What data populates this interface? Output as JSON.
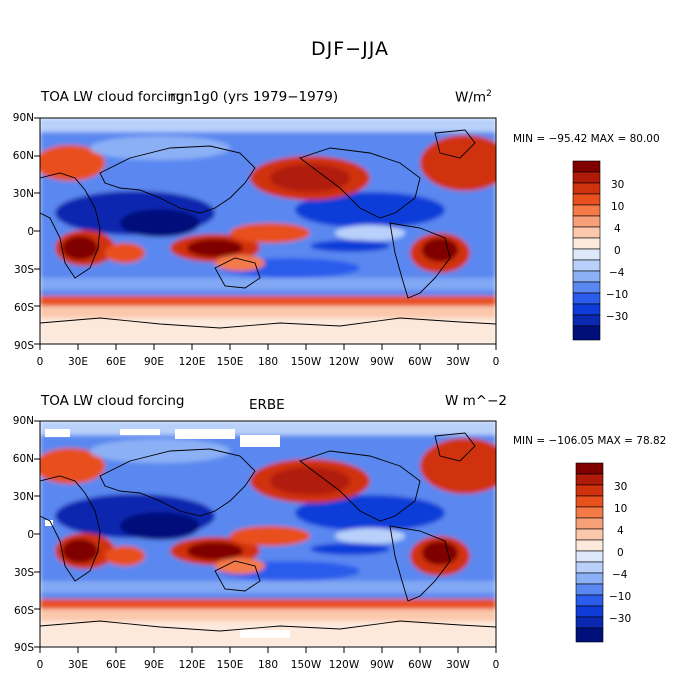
{
  "figure": {
    "main_title": "DJF−JJA"
  },
  "panels": [
    {
      "left_title": "TOA LW cloud forcing",
      "center_title": "run1g0 (yrs 1979−1979)",
      "units_base": "W/m",
      "units_exp": "2",
      "stats": "MIN = −95.42  MAX =  80.00",
      "colorbar_labels": [
        "30",
        "10",
        "4",
        "0",
        "−4",
        "−10",
        "−30"
      ]
    },
    {
      "left_title": "TOA LW cloud forcing",
      "center_title": "ERBE",
      "units": "W m^−2",
      "stats": "MIN = −106.05  MAX =  78.82",
      "colorbar_labels": [
        "30",
        "10",
        "4",
        "0",
        "−4",
        "−10",
        "−30"
      ]
    }
  ],
  "axes": {
    "y_labels": [
      "90N",
      "60N",
      "30N",
      "0",
      "30S",
      "60S",
      "90S"
    ],
    "x_labels": [
      "0",
      "30E",
      "60E",
      "90E",
      "120E",
      "150E",
      "180",
      "150W",
      "120W",
      "90W",
      "60W",
      "30W",
      "0"
    ]
  },
  "colormap": [
    "#800000",
    "#b01a08",
    "#d0320e",
    "#e8501e",
    "#f47a48",
    "#f8a07a",
    "#fbc8ac",
    "#fce9dc",
    "#dde9fb",
    "#b8d0fa",
    "#8cb0f5",
    "#5a88f0",
    "#2c5cec",
    "#0f3cd8",
    "#0a28b0",
    "#00107a"
  ]
}
